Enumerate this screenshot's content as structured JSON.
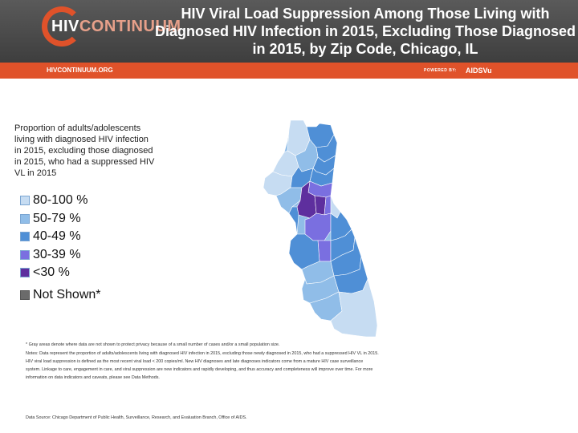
{
  "header": {
    "logo_hiv": "HIV",
    "logo_continuum": "CONTINUUM",
    "title": "HIV Viral Load Suppression Among Those Living with Diagnosed HIV Infection in 2015, Excluding Those Diagnosed in 2015, by Zip Code, Chicago, IL",
    "site_url": "HIVCONTINUUM.ORG",
    "powered_by": "POWERED BY:",
    "partner": "AIDSVu"
  },
  "legend": {
    "title": "Proportion of adults/adolescents living with diagnosed HIV infection in 2015, excluding those diagnosed in 2015, who had a suppressed HIV VL in 2015",
    "items": [
      {
        "label": "80-100 %",
        "color": "#c6dcf2"
      },
      {
        "label": "50-79 %",
        "color": "#90bde8"
      },
      {
        "label": "40-49 %",
        "color": "#4f8fd6"
      },
      {
        "label": "30-39 %",
        "color": "#7a6fe0"
      },
      {
        "label": "<30 %",
        "color": "#5e2f9e"
      }
    ],
    "not_shown": {
      "label": "Not Shown*",
      "color": "#6b6b6b"
    }
  },
  "notes": {
    "footnote": "* Gray areas denote where data are not shown to protect privacy because of a small number of cases and/or a small population size.",
    "note": "Notes: Data represent the proportion of adults/adolescents living with diagnosed HIV infection in 2015, excluding those newly diagnosed in 2015, who had a suppressed HIV VL in 2015. HIV viral load suppression is defined as the most recent viral load < 200 copies/ml. New HIV diagnoses and late diagnoses indicators come from a mature HIV case surveillance system. Linkage to care, engagement in care, and viral suppression are new indicators and rapidly developing, and thus accuracy and completeness will improve over time. For more information on data indicators and caveats, please see Data Methods.",
    "source": "Data Source: Chicago Department of Public Health, Surveillance, Research, and Evaluation Branch, Office of AIDS."
  }
}
